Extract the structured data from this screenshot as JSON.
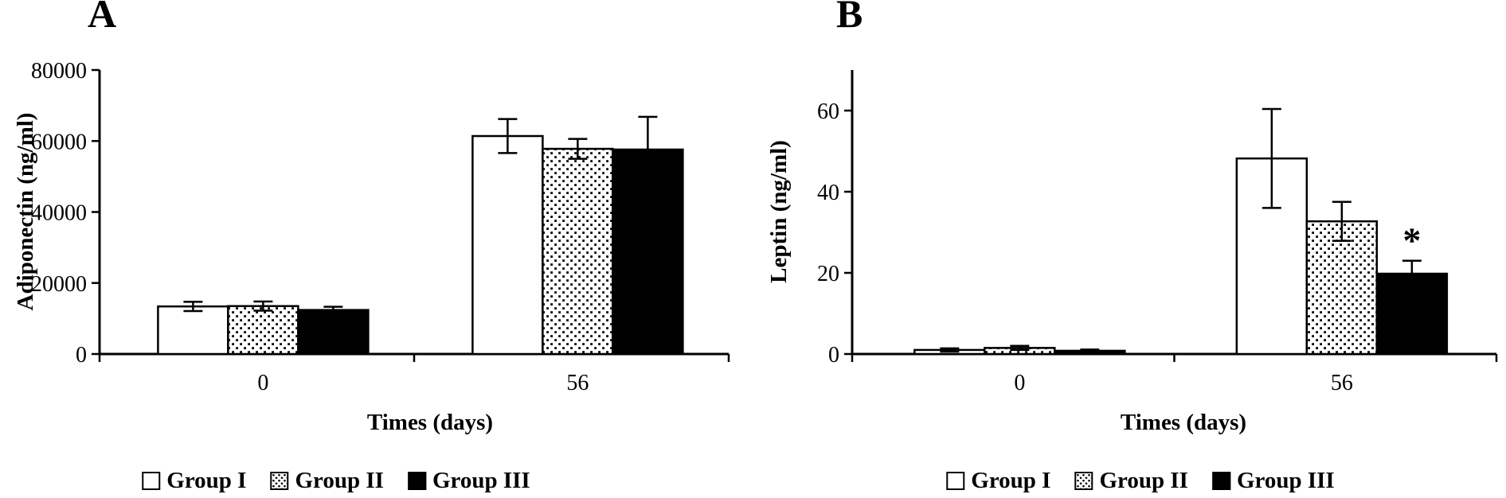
{
  "figure": {
    "background": "#ffffff",
    "ink": "#000000"
  },
  "chart_data": [
    {
      "type": "bar",
      "panel_label": "A",
      "xlabel": "Times (days)",
      "ylabel": "Adiponectin (ng/ml)",
      "categories": [
        "0",
        "56"
      ],
      "series": [
        {
          "name": "Group I",
          "fill": "white",
          "values": [
            13400,
            61400
          ],
          "errors": [
            1300,
            4800
          ]
        },
        {
          "name": "Group II",
          "fill": "dotted",
          "values": [
            13500,
            57800
          ],
          "errors": [
            1300,
            2800
          ]
        },
        {
          "name": "Group III",
          "fill": "black",
          "values": [
            12400,
            57600
          ],
          "errors": [
            900,
            9200
          ]
        }
      ],
      "ylim": [
        0,
        80000
      ],
      "yticks": [
        0,
        20000,
        40000,
        60000,
        80000
      ],
      "ytick_labels": [
        "0",
        "20000",
        "40000",
        "60000",
        "80000"
      ],
      "grid": false,
      "legend_position": "bottom",
      "annotations": []
    },
    {
      "type": "bar",
      "panel_label": "B",
      "xlabel": "Times (days)",
      "ylabel": "Leptin (ng/ml)",
      "categories": [
        "0",
        "56"
      ],
      "series": [
        {
          "name": "Group I",
          "fill": "white",
          "values": [
            1.0,
            48.2
          ],
          "errors": [
            0.4,
            12.2
          ]
        },
        {
          "name": "Group II",
          "fill": "dotted",
          "values": [
            1.5,
            32.7
          ],
          "errors": [
            0.5,
            4.8
          ]
        },
        {
          "name": "Group III",
          "fill": "black",
          "values": [
            0.8,
            19.8
          ],
          "errors": [
            0.3,
            3.2
          ]
        }
      ],
      "ylim": [
        0,
        70
      ],
      "yticks": [
        0,
        20,
        40,
        60
      ],
      "ytick_labels": [
        "0",
        "20",
        "40",
        "60"
      ],
      "grid": false,
      "legend_position": "bottom",
      "annotations": [
        {
          "text": "*",
          "category_index": 1,
          "series_index": 2
        }
      ]
    }
  ]
}
